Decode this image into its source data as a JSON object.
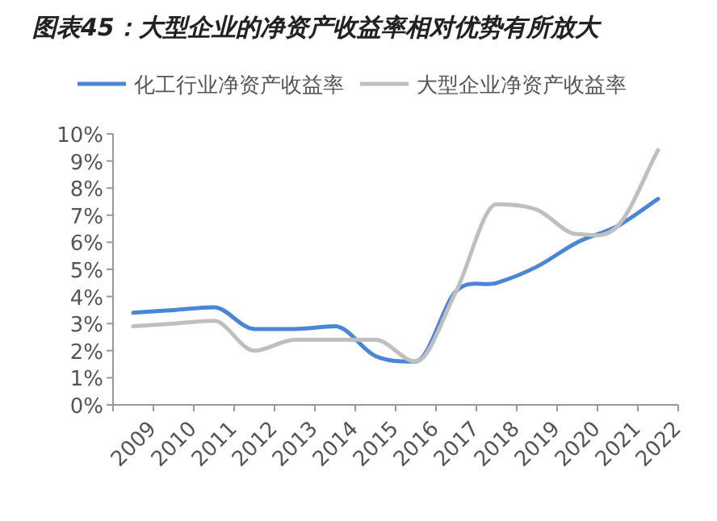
{
  "chart_data": {
    "type": "line",
    "title": "图表45：大型企业的净资产收益率相对优势有所放大",
    "categories": [
      "2009",
      "2010",
      "2011",
      "2012",
      "2013",
      "2014",
      "2015",
      "2016",
      "2017",
      "2018",
      "2019",
      "2020",
      "2021",
      "2022"
    ],
    "series": [
      {
        "name": "化工行业净资产收益率",
        "color": "#4a86d8",
        "values": [
          3.4,
          3.5,
          3.6,
          2.8,
          2.8,
          2.9,
          1.8,
          1.6,
          4.2,
          4.5,
          5.1,
          6.0,
          6.6,
          7.6
        ]
      },
      {
        "name": "大型企业净资产收益率",
        "color": "#bfbfbf",
        "values": [
          2.9,
          3.0,
          3.1,
          2.0,
          2.4,
          2.4,
          2.4,
          1.6,
          4.2,
          7.4,
          7.2,
          6.3,
          6.6,
          9.4
        ]
      }
    ],
    "ylim": [
      0,
      10
    ],
    "yticks": [
      {
        "value": 0,
        "label": "0%"
      },
      {
        "value": 1,
        "label": "1%"
      },
      {
        "value": 2,
        "label": "2%"
      },
      {
        "value": 3,
        "label": "3%"
      },
      {
        "value": 4,
        "label": "4%"
      },
      {
        "value": 5,
        "label": "5%"
      },
      {
        "value": 6,
        "label": "6%"
      },
      {
        "value": 7,
        "label": "7%"
      },
      {
        "value": 8,
        "label": "8%"
      },
      {
        "value": 9,
        "label": "9%"
      },
      {
        "value": 10,
        "label": "10%"
      }
    ],
    "legend": "top",
    "grid": false,
    "marker": "none",
    "line_style": "solid"
  }
}
